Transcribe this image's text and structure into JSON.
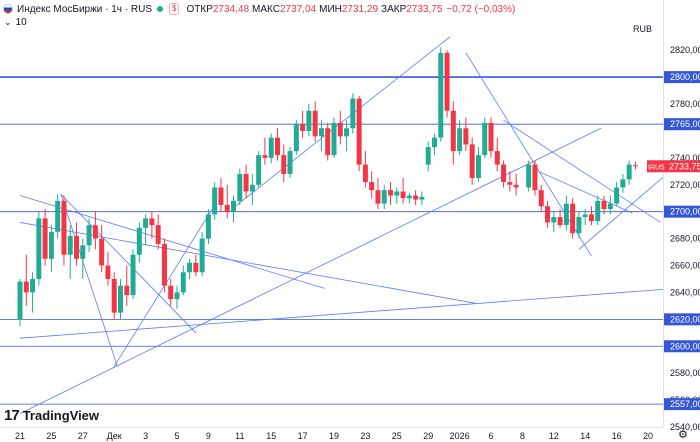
{
  "header": {
    "title": "Индекс МосБиржи · 1ч · RUS",
    "open_label": "ОТКР",
    "open_value": "2734,48",
    "high_label": "МАКС",
    "high_value": "2737,04",
    "low_label": "МИН",
    "low_value": "2731,29",
    "close_label": "ЗАКР",
    "close_value": "2733,75",
    "change": "−0,72 (−0,03%)",
    "volume_value": "10",
    "currency": "RUB"
  },
  "branding": {
    "logo_text": "TradingView"
  },
  "icons": {
    "flag": "russia-flag-icon",
    "status": "market-status-dot-icon",
    "chevron": "chevron-down-icon",
    "settings": "gear-icon"
  },
  "colors": {
    "up": "#22ab94",
    "down": "#f23645",
    "trendline": "#5b7cf7",
    "level": "#3557d6",
    "price_tag": "#f23645"
  },
  "chart_data": {
    "type": "candlestick",
    "instrument": "IRUS",
    "last_price": "2733,75",
    "ylim": [
      2540,
      2835
    ],
    "y_ticks": [
      "2820,00",
      "2800,00",
      "2780,00",
      "2765,00",
      "2740,00",
      "2720,00",
      "2700,00",
      "2680,00",
      "2660,00",
      "2640,00",
      "2620,00",
      "2600,00",
      "2580,00",
      "2560,00",
      "2557,00",
      "2540,00"
    ],
    "x_ticks": [
      "21",
      "25",
      "27",
      "Дек",
      "3",
      "5",
      "9",
      "11",
      "15",
      "17",
      "19",
      "23",
      "25",
      "29",
      "2026",
      "6",
      "8",
      "12",
      "14",
      "16",
      "20"
    ],
    "horizontal_levels": [
      {
        "price": 2800,
        "label": "2800,00",
        "bold": true
      },
      {
        "price": 2765,
        "label": "2765,00",
        "bold": false
      },
      {
        "price": 2700,
        "label": "2700,00",
        "bold": false
      },
      {
        "price": 2620,
        "label": "2620,00",
        "bold": false
      },
      {
        "price": 2600,
        "label": "2600,00",
        "bold": false
      },
      {
        "price": 2557,
        "label": "2557,00",
        "bold": false
      }
    ],
    "trendlines": [
      {
        "x1": 0,
        "y1": 2692,
        "x2": 14.5,
        "y2": 2632
      },
      {
        "x1": 0,
        "y1": 2712,
        "x2": 9.7,
        "y2": 2643
      },
      {
        "x1": 1.3,
        "y1": 2713,
        "x2": 5.6,
        "y2": 2610
      },
      {
        "x1": 1.3,
        "y1": 2713,
        "x2": 3.1,
        "y2": 2585
      },
      {
        "x1": 3.0,
        "y1": 2585,
        "x2": 6.2,
        "y2": 2705
      },
      {
        "x1": 0,
        "y1": 2550,
        "x2": 18.5,
        "y2": 2762
      },
      {
        "x1": 6.8,
        "y1": 2703,
        "x2": 13.7,
        "y2": 2830
      },
      {
        "x1": 0,
        "y1": 2606,
        "x2": 20.9,
        "y2": 2643
      },
      {
        "x1": 14.2,
        "y1": 2818,
        "x2": 18.2,
        "y2": 2667
      },
      {
        "x1": 15.4,
        "y1": 2768,
        "x2": 20.4,
        "y2": 2692
      },
      {
        "x1": 16.5,
        "y1": 2730,
        "x2": 19.5,
        "y2": 2699
      },
      {
        "x1": 17.8,
        "y1": 2672,
        "x2": 20.6,
        "y2": 2728
      }
    ],
    "candles": [
      {
        "x": 0.0,
        "o": 2620,
        "h": 2650,
        "l": 2615,
        "c": 2648
      },
      {
        "x": 0.2,
        "o": 2648,
        "h": 2668,
        "l": 2630,
        "c": 2640
      },
      {
        "x": 0.4,
        "o": 2640,
        "h": 2655,
        "l": 2625,
        "c": 2650
      },
      {
        "x": 0.6,
        "o": 2650,
        "h": 2700,
        "l": 2645,
        "c": 2695
      },
      {
        "x": 0.8,
        "o": 2695,
        "h": 2702,
        "l": 2660,
        "c": 2665
      },
      {
        "x": 1.0,
        "o": 2665,
        "h": 2690,
        "l": 2655,
        "c": 2685
      },
      {
        "x": 1.2,
        "o": 2685,
        "h": 2713,
        "l": 2680,
        "c": 2708
      },
      {
        "x": 1.4,
        "o": 2708,
        "h": 2712,
        "l": 2660,
        "c": 2668
      },
      {
        "x": 1.6,
        "o": 2668,
        "h": 2690,
        "l": 2650,
        "c": 2682
      },
      {
        "x": 1.8,
        "o": 2682,
        "h": 2692,
        "l": 2660,
        "c": 2665
      },
      {
        "x": 2.0,
        "o": 2665,
        "h": 2680,
        "l": 2650,
        "c": 2675
      },
      {
        "x": 2.2,
        "o": 2675,
        "h": 2695,
        "l": 2670,
        "c": 2690
      },
      {
        "x": 2.4,
        "o": 2690,
        "h": 2700,
        "l": 2672,
        "c": 2680
      },
      {
        "x": 2.6,
        "o": 2680,
        "h": 2690,
        "l": 2655,
        "c": 2660
      },
      {
        "x": 2.8,
        "o": 2660,
        "h": 2670,
        "l": 2645,
        "c": 2650
      },
      {
        "x": 3.0,
        "o": 2650,
        "h": 2655,
        "l": 2620,
        "c": 2625
      },
      {
        "x": 3.2,
        "o": 2625,
        "h": 2650,
        "l": 2620,
        "c": 2645
      },
      {
        "x": 3.4,
        "o": 2645,
        "h": 2660,
        "l": 2630,
        "c": 2638
      },
      {
        "x": 3.6,
        "o": 2638,
        "h": 2672,
        "l": 2635,
        "c": 2668
      },
      {
        "x": 3.8,
        "o": 2668,
        "h": 2692,
        "l": 2662,
        "c": 2688
      },
      {
        "x": 4.0,
        "o": 2688,
        "h": 2698,
        "l": 2675,
        "c": 2695
      },
      {
        "x": 4.2,
        "o": 2695,
        "h": 2700,
        "l": 2680,
        "c": 2690
      },
      {
        "x": 4.4,
        "o": 2690,
        "h": 2698,
        "l": 2672,
        "c": 2676
      },
      {
        "x": 4.6,
        "o": 2676,
        "h": 2680,
        "l": 2640,
        "c": 2645
      },
      {
        "x": 4.8,
        "o": 2645,
        "h": 2650,
        "l": 2630,
        "c": 2635
      },
      {
        "x": 5.0,
        "o": 2635,
        "h": 2645,
        "l": 2628,
        "c": 2640
      },
      {
        "x": 5.2,
        "o": 2640,
        "h": 2660,
        "l": 2638,
        "c": 2655
      },
      {
        "x": 5.4,
        "o": 2655,
        "h": 2665,
        "l": 2650,
        "c": 2662
      },
      {
        "x": 5.6,
        "o": 2662,
        "h": 2668,
        "l": 2652,
        "c": 2655
      },
      {
        "x": 5.8,
        "o": 2655,
        "h": 2685,
        "l": 2652,
        "c": 2680
      },
      {
        "x": 6.0,
        "o": 2680,
        "h": 2702,
        "l": 2676,
        "c": 2698
      },
      {
        "x": 6.2,
        "o": 2698,
        "h": 2722,
        "l": 2694,
        "c": 2718
      },
      {
        "x": 6.4,
        "o": 2718,
        "h": 2725,
        "l": 2700,
        "c": 2705
      },
      {
        "x": 6.6,
        "o": 2705,
        "h": 2720,
        "l": 2695,
        "c": 2700
      },
      {
        "x": 6.8,
        "o": 2700,
        "h": 2712,
        "l": 2692,
        "c": 2708
      },
      {
        "x": 7.0,
        "o": 2708,
        "h": 2732,
        "l": 2705,
        "c": 2728
      },
      {
        "x": 7.2,
        "o": 2728,
        "h": 2735,
        "l": 2710,
        "c": 2715
      },
      {
        "x": 7.4,
        "o": 2715,
        "h": 2728,
        "l": 2705,
        "c": 2720
      },
      {
        "x": 7.6,
        "o": 2720,
        "h": 2745,
        "l": 2718,
        "c": 2742
      },
      {
        "x": 7.8,
        "o": 2742,
        "h": 2755,
        "l": 2735,
        "c": 2740
      },
      {
        "x": 8.0,
        "o": 2740,
        "h": 2758,
        "l": 2736,
        "c": 2755
      },
      {
        "x": 8.2,
        "o": 2755,
        "h": 2762,
        "l": 2738,
        "c": 2742
      },
      {
        "x": 8.4,
        "o": 2742,
        "h": 2750,
        "l": 2722,
        "c": 2728
      },
      {
        "x": 8.6,
        "o": 2728,
        "h": 2748,
        "l": 2725,
        "c": 2745
      },
      {
        "x": 8.8,
        "o": 2745,
        "h": 2768,
        "l": 2742,
        "c": 2765
      },
      {
        "x": 9.0,
        "o": 2765,
        "h": 2775,
        "l": 2755,
        "c": 2760
      },
      {
        "x": 9.2,
        "o": 2760,
        "h": 2780,
        "l": 2756,
        "c": 2775
      },
      {
        "x": 9.4,
        "o": 2775,
        "h": 2782,
        "l": 2752,
        "c": 2756
      },
      {
        "x": 9.6,
        "o": 2756,
        "h": 2768,
        "l": 2745,
        "c": 2762
      },
      {
        "x": 9.8,
        "o": 2762,
        "h": 2766,
        "l": 2738,
        "c": 2742
      },
      {
        "x": 10.0,
        "o": 2742,
        "h": 2770,
        "l": 2740,
        "c": 2766
      },
      {
        "x": 10.2,
        "o": 2766,
        "h": 2775,
        "l": 2750,
        "c": 2756
      },
      {
        "x": 10.4,
        "o": 2756,
        "h": 2768,
        "l": 2745,
        "c": 2762
      },
      {
        "x": 10.6,
        "o": 2762,
        "h": 2788,
        "l": 2758,
        "c": 2784
      },
      {
        "x": 10.8,
        "o": 2784,
        "h": 2786,
        "l": 2730,
        "c": 2735
      },
      {
        "x": 11.0,
        "o": 2735,
        "h": 2745,
        "l": 2718,
        "c": 2722
      },
      {
        "x": 11.2,
        "o": 2722,
        "h": 2730,
        "l": 2710,
        "c": 2716
      },
      {
        "x": 11.4,
        "o": 2716,
        "h": 2725,
        "l": 2702,
        "c": 2706
      },
      {
        "x": 11.6,
        "o": 2706,
        "h": 2720,
        "l": 2702,
        "c": 2716
      },
      {
        "x": 11.8,
        "o": 2716,
        "h": 2722,
        "l": 2705,
        "c": 2712
      },
      {
        "x": 12.0,
        "o": 2712,
        "h": 2718,
        "l": 2706,
        "c": 2715
      },
      {
        "x": 12.2,
        "o": 2715,
        "h": 2725,
        "l": 2706,
        "c": 2710
      },
      {
        "x": 12.4,
        "o": 2710,
        "h": 2714,
        "l": 2706,
        "c": 2712
      },
      {
        "x": 12.6,
        "o": 2712,
        "h": 2716,
        "l": 2705,
        "c": 2709
      },
      {
        "x": 12.8,
        "o": 2709,
        "h": 2715,
        "l": 2705,
        "c": 2711
      },
      {
        "x": 13.0,
        "o": 2735,
        "h": 2752,
        "l": 2730,
        "c": 2748
      },
      {
        "x": 13.2,
        "o": 2748,
        "h": 2758,
        "l": 2742,
        "c": 2755
      },
      {
        "x": 13.4,
        "o": 2755,
        "h": 2822,
        "l": 2752,
        "c": 2818
      },
      {
        "x": 13.6,
        "o": 2818,
        "h": 2820,
        "l": 2770,
        "c": 2775
      },
      {
        "x": 13.8,
        "o": 2775,
        "h": 2782,
        "l": 2735,
        "c": 2745
      },
      {
        "x": 14.0,
        "o": 2745,
        "h": 2768,
        "l": 2742,
        "c": 2762
      },
      {
        "x": 14.2,
        "o": 2762,
        "h": 2770,
        "l": 2745,
        "c": 2750
      },
      {
        "x": 14.4,
        "o": 2750,
        "h": 2755,
        "l": 2720,
        "c": 2725
      },
      {
        "x": 14.6,
        "o": 2725,
        "h": 2748,
        "l": 2722,
        "c": 2742
      },
      {
        "x": 14.8,
        "o": 2742,
        "h": 2770,
        "l": 2740,
        "c": 2766
      },
      {
        "x": 15.0,
        "o": 2766,
        "h": 2770,
        "l": 2740,
        "c": 2745
      },
      {
        "x": 15.2,
        "o": 2745,
        "h": 2755,
        "l": 2730,
        "c": 2735
      },
      {
        "x": 15.4,
        "o": 2735,
        "h": 2738,
        "l": 2718,
        "c": 2722
      },
      {
        "x": 15.6,
        "o": 2722,
        "h": 2730,
        "l": 2715,
        "c": 2720
      },
      {
        "x": 15.8,
        "o": 2720,
        "h": 2728,
        "l": 2712,
        "c": 2718
      },
      {
        "x": 16.2,
        "o": 2718,
        "h": 2738,
        "l": 2715,
        "c": 2735
      },
      {
        "x": 16.4,
        "o": 2735,
        "h": 2738,
        "l": 2712,
        "c": 2716
      },
      {
        "x": 16.6,
        "o": 2716,
        "h": 2720,
        "l": 2700,
        "c": 2704
      },
      {
        "x": 16.8,
        "o": 2704,
        "h": 2708,
        "l": 2688,
        "c": 2692
      },
      {
        "x": 17.0,
        "o": 2692,
        "h": 2700,
        "l": 2685,
        "c": 2696
      },
      {
        "x": 17.2,
        "o": 2696,
        "h": 2702,
        "l": 2688,
        "c": 2690
      },
      {
        "x": 17.4,
        "o": 2690,
        "h": 2712,
        "l": 2686,
        "c": 2706
      },
      {
        "x": 17.6,
        "o": 2706,
        "h": 2710,
        "l": 2680,
        "c": 2684
      },
      {
        "x": 17.8,
        "o": 2684,
        "h": 2700,
        "l": 2680,
        "c": 2696
      },
      {
        "x": 18.0,
        "o": 2696,
        "h": 2702,
        "l": 2690,
        "c": 2698
      },
      {
        "x": 18.2,
        "o": 2698,
        "h": 2704,
        "l": 2690,
        "c": 2693
      },
      {
        "x": 18.4,
        "o": 2693,
        "h": 2712,
        "l": 2690,
        "c": 2708
      },
      {
        "x": 18.6,
        "o": 2708,
        "h": 2712,
        "l": 2698,
        "c": 2702
      },
      {
        "x": 18.8,
        "o": 2702,
        "h": 2712,
        "l": 2698,
        "c": 2706
      },
      {
        "x": 19.0,
        "o": 2706,
        "h": 2722,
        "l": 2704,
        "c": 2718
      },
      {
        "x": 19.2,
        "o": 2718,
        "h": 2728,
        "l": 2714,
        "c": 2724
      },
      {
        "x": 19.4,
        "o": 2724,
        "h": 2738,
        "l": 2720,
        "c": 2735
      },
      {
        "x": 19.6,
        "o": 2734.48,
        "h": 2737.04,
        "l": 2731.29,
        "c": 2733.75
      }
    ]
  }
}
